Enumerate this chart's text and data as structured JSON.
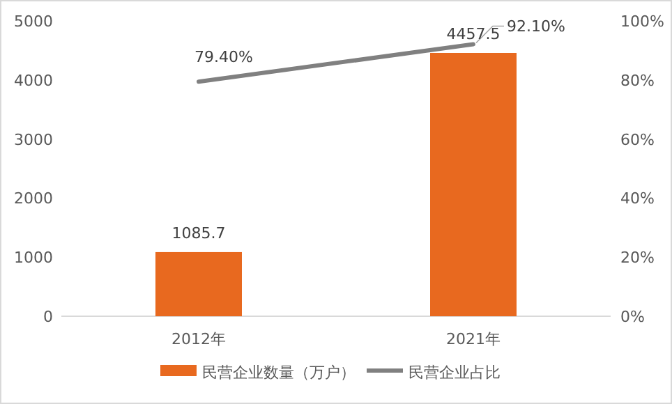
{
  "chart_data": {
    "type": "bar",
    "categories": [
      "2012年",
      "2021年"
    ],
    "series": [
      {
        "name": "民营企业数量（万户）",
        "color": "#e8691f",
        "values": [
          1085.7,
          4457.5
        ],
        "value_labels": [
          "1085.7",
          "4457.5"
        ]
      },
      {
        "name": "民营企业占比",
        "type": "line",
        "axis": "y2",
        "color": "#808080",
        "values": [
          79.4,
          92.1
        ],
        "value_labels": [
          "79.40%",
          "92.10%"
        ]
      }
    ],
    "ylim": [
      0,
      5000
    ],
    "yticks": [
      0,
      1000,
      2000,
      3000,
      4000,
      5000
    ],
    "y2lim": [
      0,
      100
    ],
    "y2ticks": [
      {
        "value": 0,
        "label": "0%"
      },
      {
        "value": 20,
        "label": "20%"
      },
      {
        "value": 40,
        "label": "40%"
      },
      {
        "value": 60,
        "label": "60%"
      },
      {
        "value": 80,
        "label": "80%"
      },
      {
        "value": 100,
        "label": "100%"
      }
    ],
    "grid": false,
    "legend": "bottom",
    "marker": "none",
    "line_style": "solid"
  }
}
